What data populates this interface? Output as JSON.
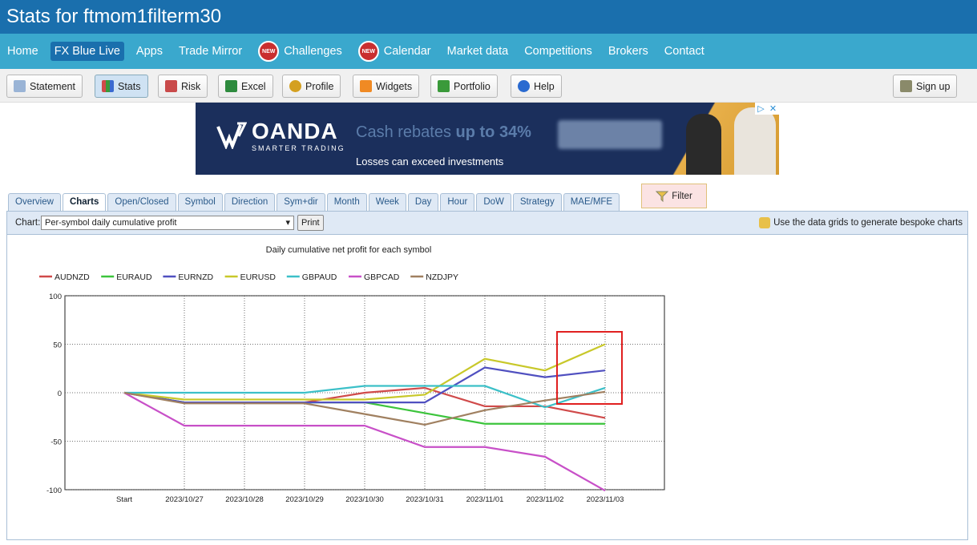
{
  "page": {
    "title": "Stats for ftmom1filterm30"
  },
  "nav": {
    "items": [
      {
        "label": "Home",
        "active": false,
        "badge": false
      },
      {
        "label": "FX Blue Live",
        "active": true,
        "badge": false
      },
      {
        "label": "Apps",
        "active": false,
        "badge": false
      },
      {
        "label": "Trade Mirror",
        "active": false,
        "badge": false
      },
      {
        "label": "Challenges",
        "active": false,
        "badge": true
      },
      {
        "label": "Calendar",
        "active": false,
        "badge": true
      },
      {
        "label": "Market data",
        "active": false,
        "badge": false
      },
      {
        "label": "Competitions",
        "active": false,
        "badge": false
      },
      {
        "label": "Brokers",
        "active": false,
        "badge": false
      },
      {
        "label": "Contact",
        "active": false,
        "badge": false
      }
    ],
    "badge_text": "NEW"
  },
  "toolbar": {
    "statement": "Statement",
    "stats": "Stats",
    "risk": "Risk",
    "excel": "Excel",
    "profile": "Profile",
    "widgets": "Widgets",
    "portfolio": "Portfolio",
    "help": "Help",
    "signup": "Sign up"
  },
  "ad": {
    "brand": "OANDA",
    "tagline": "SMARTER TRADING",
    "headline_pre": "Cash rebates ",
    "headline_bold": "up to 34%",
    "sub": "Losses can exceed investments"
  },
  "tabs": [
    "Overview",
    "Charts",
    "Open/Closed",
    "Symbol",
    "Direction",
    "Sym+dir",
    "Month",
    "Week",
    "Day",
    "Hour",
    "DoW",
    "Strategy",
    "MAE/MFE"
  ],
  "active_tab": "Charts",
  "filter": {
    "label": "Filter"
  },
  "chart_controls": {
    "label": "Chart:",
    "selected": "Per-symbol daily cumulative profit",
    "print": "Print",
    "hint": "Use the data grids to generate bespoke charts"
  },
  "colors": {
    "AUDNZD": "#d04a4a",
    "EURAUD": "#3cc43c",
    "EURNZD": "#5050c0",
    "EURUSD": "#c8c82a",
    "GBPAUD": "#3cc0c8",
    "GBPCAD": "#c850c8",
    "NZDJPY": "#a08060",
    "highlight": "#e02020"
  },
  "chart_data": {
    "type": "line",
    "title": "Daily cumulative net profit for each symbol",
    "categories": [
      "Start",
      "2023/10/27",
      "2023/10/28",
      "2023/10/29",
      "2023/10/30",
      "2023/10/31",
      "2023/11/01",
      "2023/11/02",
      "2023/11/03"
    ],
    "ylim": [
      -100,
      100
    ],
    "yticks": [
      100,
      50,
      0,
      -50,
      -100
    ],
    "grid": true,
    "legend": "top",
    "series": [
      {
        "name": "AUDNZD",
        "values": [
          0,
          -10,
          -10,
          -10,
          0,
          5,
          -14,
          -14,
          -26
        ]
      },
      {
        "name": "EURAUD",
        "values": [
          0,
          -10,
          -10,
          -10,
          -10,
          -21,
          -32,
          -32,
          -32
        ]
      },
      {
        "name": "EURNZD",
        "values": [
          0,
          -10,
          -10,
          -10,
          -10,
          -10,
          26,
          16,
          23
        ]
      },
      {
        "name": "EURUSD",
        "values": [
          0,
          -7,
          -7,
          -7,
          -7,
          -2,
          35,
          23,
          50
        ]
      },
      {
        "name": "GBPAUD",
        "values": [
          0,
          0,
          0,
          0,
          7,
          7,
          7,
          -15,
          5
        ]
      },
      {
        "name": "GBPCAD",
        "values": [
          0,
          -34,
          -34,
          -34,
          -34,
          -56,
          -56,
          -66,
          -101
        ]
      },
      {
        "name": "NZDJPY",
        "values": [
          0,
          -11,
          -11,
          -11,
          -22,
          -33,
          -18,
          -8,
          1
        ]
      }
    ]
  }
}
